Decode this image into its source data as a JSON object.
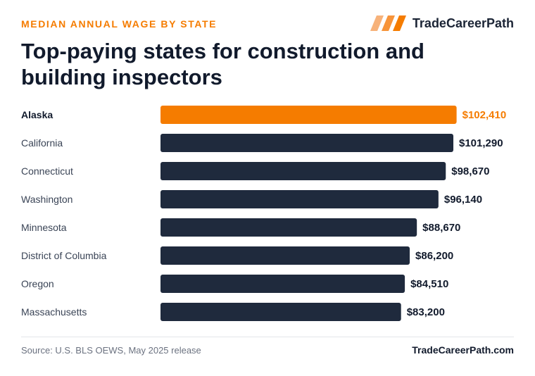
{
  "header": {
    "eyebrow": "MEDIAN ANNUAL WAGE BY STATE",
    "brand_name": "TradeCareerPath",
    "brand_icon": "stripes-logo-icon",
    "title": "Top-paying states for construction and building inspectors"
  },
  "colors": {
    "accent": "#f57c00",
    "bar_default": "#1f2a3d",
    "label_default": "#3a4456",
    "label_highlight": "#111a2c",
    "value_default": "#111a2c"
  },
  "chart_data": {
    "type": "bar",
    "orientation": "horizontal",
    "categories": [
      "Alaska",
      "California",
      "Connecticut",
      "Washington",
      "Minnesota",
      "District of Columbia",
      "Oregon",
      "Massachusetts"
    ],
    "values": [
      102410,
      101290,
      98670,
      96140,
      88670,
      86200,
      84510,
      83200
    ],
    "value_labels": [
      "$102,410",
      "$101,290",
      "$98,670",
      "$96,140",
      "$88,670",
      "$86,200",
      "$84,510",
      "$83,200"
    ],
    "highlight_index": 0,
    "xlim": [
      0,
      112000
    ],
    "xlabel": "",
    "ylabel": "",
    "grid": false,
    "legend": "none"
  },
  "footer": {
    "source": "Source: U.S. BLS OEWS, May 2025 release",
    "site": "TradeCareerPath.com"
  }
}
